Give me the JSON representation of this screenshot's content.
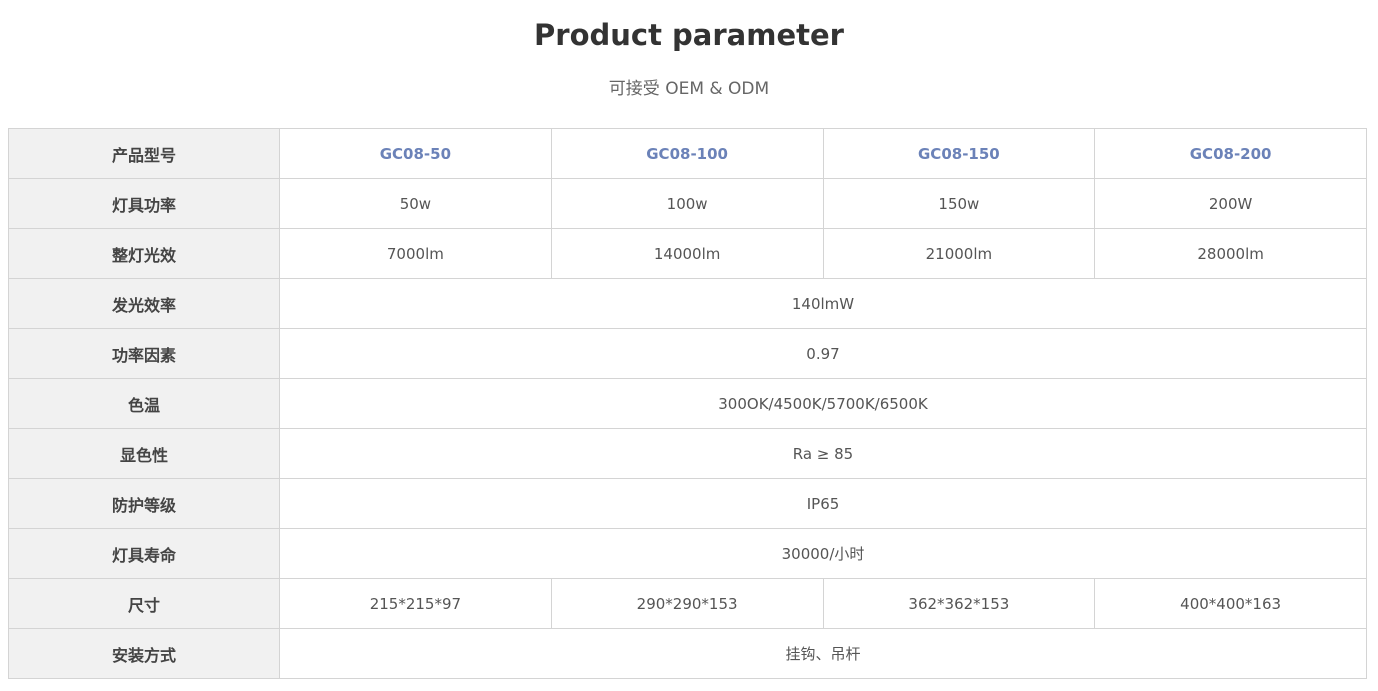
{
  "title": "Product parameter",
  "subtitle": "可接受 OEM & ODM",
  "accent_color": "#6b82b8",
  "rows": [
    {
      "label": "产品型号",
      "cells": [
        "GC08-50",
        "GC08-100",
        "GC08-150",
        "GC08-200"
      ],
      "header": true
    },
    {
      "label": "灯具功率",
      "cells": [
        "50w",
        "100w",
        "150w",
        "200W"
      ]
    },
    {
      "label": "整灯光效",
      "cells": [
        "7000lm",
        "14000lm",
        "21000lm",
        "28000lm"
      ]
    },
    {
      "label": "发光效率",
      "cells": [
        "140lmW"
      ]
    },
    {
      "label": "功率因素",
      "cells": [
        "0.97"
      ]
    },
    {
      "label": "色温",
      "cells": [
        "300OK/4500K/5700K/6500K"
      ]
    },
    {
      "label": "显色性",
      "cells": [
        "Ra ≥ 85"
      ]
    },
    {
      "label": "防护等级",
      "cells": [
        "IP65"
      ]
    },
    {
      "label": "灯具寿命",
      "cells": [
        "30000/小时"
      ]
    },
    {
      "label": "尺寸",
      "cells": [
        "215*215*97",
        "290*290*153",
        "362*362*153",
        "400*400*163"
      ]
    },
    {
      "label": "安装方式",
      "cells": [
        "挂钩、吊杆"
      ]
    }
  ]
}
